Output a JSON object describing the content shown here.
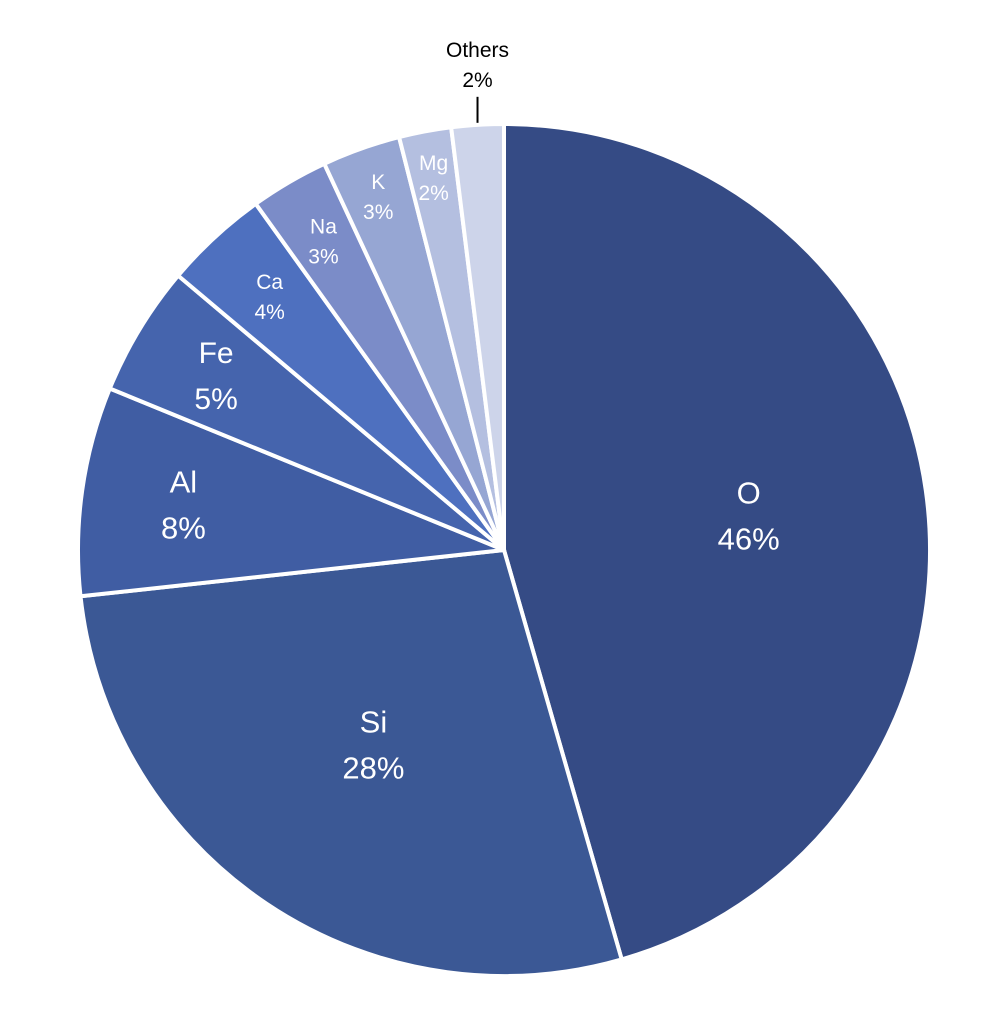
{
  "chart_data": {
    "type": "pie",
    "title": "",
    "start_angle_deg": 0,
    "direction": "clockwise",
    "legend": "none",
    "slices": [
      {
        "label": "O",
        "value": 46,
        "pct_label": "46%",
        "color": "#354b85"
      },
      {
        "label": "Si",
        "value": 28,
        "pct_label": "28%",
        "color": "#3b5895"
      },
      {
        "label": "Al",
        "value": 8,
        "pct_label": "8%",
        "color": "#405da3"
      },
      {
        "label": "Fe",
        "value": 5,
        "pct_label": "5%",
        "color": "#4564ad"
      },
      {
        "label": "Ca",
        "value": 4,
        "pct_label": "4%",
        "color": "#4e70bf"
      },
      {
        "label": "Na",
        "value": 3,
        "pct_label": "3%",
        "color": "#7b8cc8"
      },
      {
        "label": "K",
        "value": 3,
        "pct_label": "3%",
        "color": "#96a6d3"
      },
      {
        "label": "Mg",
        "value": 2,
        "pct_label": "2%",
        "color": "#b4bfe0"
      },
      {
        "label": "Others",
        "value": 2,
        "pct_label": "2%",
        "color": "#cdd4ea"
      }
    ]
  }
}
